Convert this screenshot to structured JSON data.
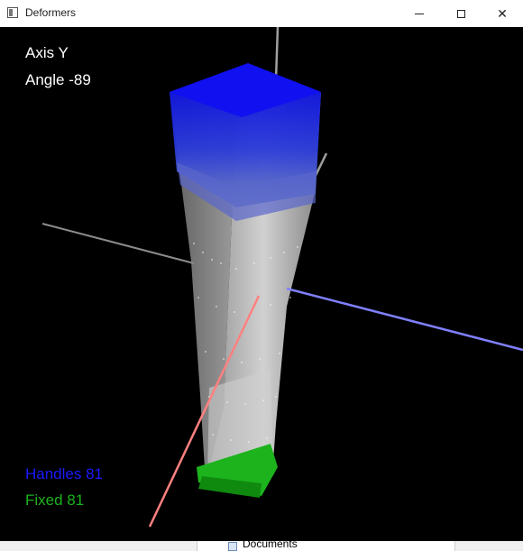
{
  "window": {
    "title": "Deformers",
    "minimize_icon": "minimize-icon",
    "maximize_icon": "maximize-icon",
    "close_icon": "close-icon",
    "close_glyph": "✕"
  },
  "viewport": {
    "axis_text": "Axis Y",
    "angle_text": "Angle -89",
    "handles_text": "Handles 81",
    "fixed_text": "Fixed 81",
    "background_color": "#000000",
    "handles_color": "#1a1aff",
    "fixed_color": "#1db31d",
    "axis_colors": {
      "x_axis": "#ff8080",
      "y_axis": "#a0a0a0",
      "z_axis": "#8080ff"
    }
  },
  "taskbar": {
    "item_label": "Documents",
    "item_icon": "documents-icon"
  }
}
